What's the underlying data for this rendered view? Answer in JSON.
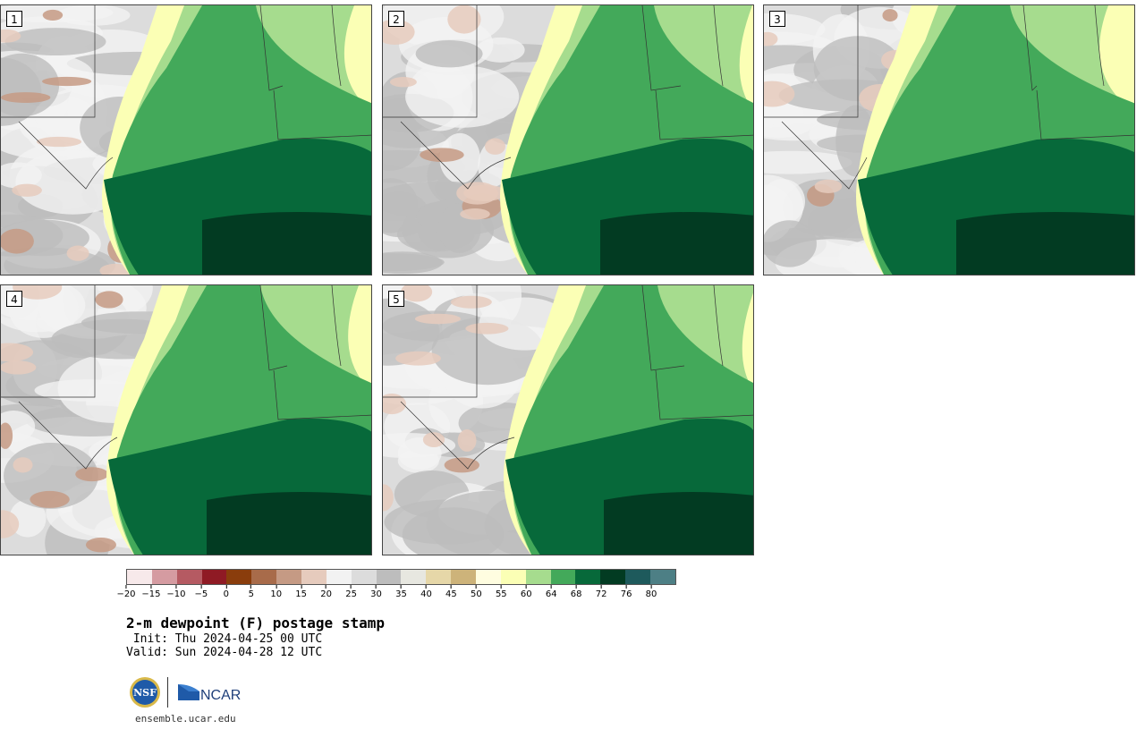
{
  "panels": [
    {
      "label": "1"
    },
    {
      "label": "2"
    },
    {
      "label": "3"
    },
    {
      "label": "4"
    },
    {
      "label": "5"
    }
  ],
  "colorbar": {
    "colors": [
      "#f7e9ea",
      "#d59ba1",
      "#b55a62",
      "#8f1a24",
      "#8a3d0c",
      "#a86b4a",
      "#c59a84",
      "#e6cbbd",
      "#f2f2f2",
      "#dcdcdc",
      "#bdbdbd",
      "#e7e7e0",
      "#e6d7a8",
      "#cdb37a",
      "#fffde0",
      "#fbffb5",
      "#a6dc8e",
      "#43a95a",
      "#07693a",
      "#023b22",
      "#1e5a5c",
      "#4d7f85"
    ],
    "tick_labels": [
      "−20",
      "−15",
      "−10",
      "−5",
      "0",
      "5",
      "10",
      "15",
      "20",
      "25",
      "30",
      "35",
      "40",
      "45",
      "50",
      "55",
      "60",
      "64",
      "68",
      "72",
      "76",
      "80"
    ]
  },
  "title": "2-m dewpoint (F) postage stamp",
  "init": " Init: Thu 2024-04-25 00 UTC",
  "valid": "Valid: Sun 2024-04-28 12 UTC",
  "logos": {
    "nsf": "NSF",
    "ncar": "NCAR"
  },
  "url": "ensemble.ucar.edu"
}
